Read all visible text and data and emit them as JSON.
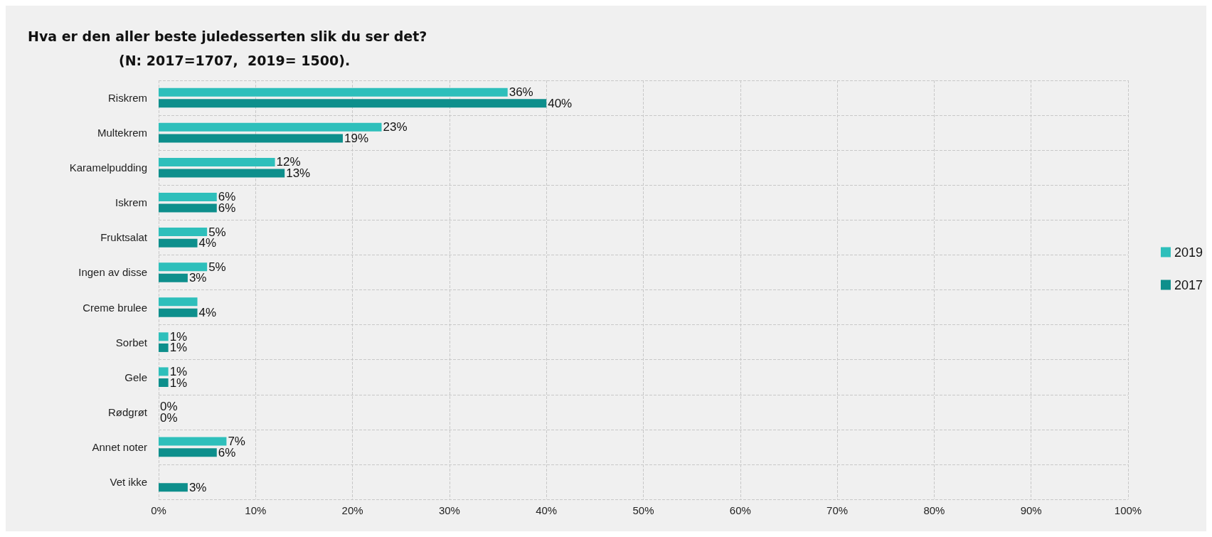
{
  "chart_data": {
    "type": "bar",
    "orientation": "horizontal",
    "title": "Hva er den aller beste juledesserten slik du ser det?",
    "subtitle": "(N: 2017=1707,  2019= 1500).",
    "categories": [
      "Riskrem",
      "Multekrem",
      "Karamelpudding",
      "Iskrem",
      "Fruktsalat",
      "Ingen av disse",
      "Creme brulee",
      "Sorbet",
      "Gele",
      "Rødgrøt",
      "Annet noter",
      "Vet ikke"
    ],
    "series": [
      {
        "name": "2019",
        "color": "#2ebfbb",
        "values": [
          36,
          23,
          12,
          6,
          5,
          5,
          4,
          1,
          1,
          0,
          7,
          null
        ],
        "value_labels": [
          "36%",
          "23%",
          "12%",
          "6%",
          "5%",
          "5%",
          null,
          "1%",
          "1%",
          "0%",
          "7%",
          null
        ]
      },
      {
        "name": "2017",
        "color": "#0e8f8c",
        "values": [
          40,
          19,
          13,
          6,
          4,
          3,
          4,
          1,
          1,
          0,
          6,
          3
        ],
        "value_labels": [
          "40%",
          "19%",
          "13%",
          "6%",
          "4%",
          "3%",
          "4%",
          "1%",
          "1%",
          "0%",
          "6%",
          "3%"
        ]
      }
    ],
    "xlim": [
      0,
      100
    ],
    "xticks": [
      {
        "value": 0,
        "label": "0%"
      },
      {
        "value": 10,
        "label": "10%"
      },
      {
        "value": 20,
        "label": "20%"
      },
      {
        "value": 30,
        "label": "30%"
      },
      {
        "value": 40,
        "label": "40%"
      },
      {
        "value": 50,
        "label": "50%"
      },
      {
        "value": 60,
        "label": "60%"
      },
      {
        "value": 70,
        "label": "70%"
      },
      {
        "value": 80,
        "label": "80%"
      },
      {
        "value": 90,
        "label": "90%"
      },
      {
        "value": 100,
        "label": "100%"
      }
    ],
    "grid": true,
    "legend": "right"
  }
}
